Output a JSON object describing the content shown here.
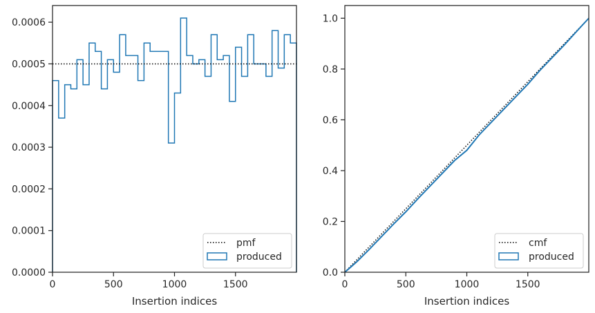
{
  "chart_data": [
    {
      "type": "histogram",
      "xlabel": "Insertion indices",
      "ylabel": "",
      "xlim": [
        0,
        2000
      ],
      "ylim": [
        0,
        0.00064
      ],
      "xticks": [
        0,
        500,
        1000,
        1500
      ],
      "xtick_labels": [
        "0",
        "500",
        "1000",
        "1500"
      ],
      "yticks": [
        0,
        0.0001,
        0.0002,
        0.0003,
        0.0004,
        0.0005,
        0.0006
      ],
      "ytick_labels": [
        "0.0000",
        "0.0001",
        "0.0002",
        "0.0003",
        "0.0004",
        "0.0005",
        "0.0006"
      ],
      "grid": false,
      "legend_position": "bottom-right",
      "reference": {
        "name": "pmf",
        "style": "dotted",
        "color": "#000000",
        "value": 0.0005
      },
      "series": [
        {
          "name": "produced",
          "color": "#1f77b4",
          "style": "step",
          "bin_width": 50,
          "bin_starts": [
            0,
            50,
            100,
            150,
            200,
            250,
            300,
            350,
            400,
            450,
            500,
            550,
            600,
            650,
            700,
            750,
            800,
            850,
            900,
            950,
            1000,
            1050,
            1100,
            1150,
            1200,
            1250,
            1300,
            1350,
            1400,
            1450,
            1500,
            1550,
            1600,
            1650,
            1700,
            1750,
            1800,
            1850,
            1900,
            1950
          ],
          "values": [
            0.00046,
            0.00037,
            0.00045,
            0.00044,
            0.00051,
            0.00045,
            0.00055,
            0.00053,
            0.00044,
            0.00051,
            0.00048,
            0.00057,
            0.00052,
            0.00052,
            0.00046,
            0.00055,
            0.00053,
            0.00053,
            0.00053,
            0.00031,
            0.00043,
            0.00061,
            0.00052,
            0.0005,
            0.00051,
            0.00047,
            0.00057,
            0.00051,
            0.00052,
            0.00041,
            0.00054,
            0.00047,
            0.00057,
            0.0005,
            0.0005,
            0.00047,
            0.00058,
            0.00049,
            0.00057,
            0.00055
          ]
        }
      ]
    },
    {
      "type": "line",
      "xlabel": "Insertion indices",
      "ylabel": "",
      "xlim": [
        0,
        2000
      ],
      "ylim": [
        0,
        1.05
      ],
      "xticks": [
        0,
        500,
        1000,
        1500
      ],
      "xtick_labels": [
        "0",
        "500",
        "1000",
        "1500"
      ],
      "yticks": [
        0,
        0.2,
        0.4,
        0.6,
        0.8,
        1.0
      ],
      "ytick_labels": [
        "0.0",
        "0.2",
        "0.4",
        "0.6",
        "0.8",
        "1.0"
      ],
      "grid": false,
      "legend_position": "bottom-right",
      "reference": {
        "name": "cmf",
        "style": "dotted",
        "color": "#000000",
        "x": [
          0,
          2000
        ],
        "y": [
          0,
          1.0
        ]
      },
      "series": [
        {
          "name": "produced",
          "color": "#1f77b4",
          "style": "line",
          "x": [
            0,
            100,
            200,
            300,
            400,
            500,
            600,
            700,
            800,
            900,
            1000,
            1100,
            1200,
            1300,
            1400,
            1500,
            1600,
            1700,
            1800,
            1900,
            2000
          ],
          "y": [
            0,
            0.042,
            0.09,
            0.14,
            0.19,
            0.238,
            0.29,
            0.34,
            0.39,
            0.44,
            0.48,
            0.54,
            0.59,
            0.64,
            0.69,
            0.74,
            0.795,
            0.845,
            0.895,
            0.948,
            1.0
          ]
        }
      ]
    }
  ]
}
